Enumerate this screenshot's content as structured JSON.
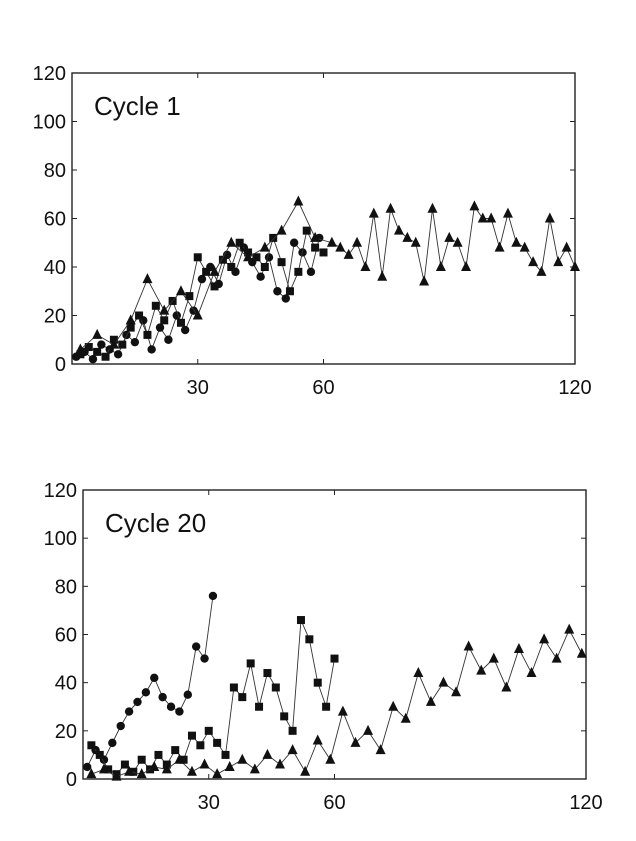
{
  "chart_data": [
    {
      "type": "line",
      "title": "Cycle 1",
      "xlabel": "",
      "ylabel": "",
      "xlim": [
        0,
        120
      ],
      "ylim": [
        0,
        120
      ],
      "x_ticks": [
        30,
        60,
        120
      ],
      "y_ticks": [
        0,
        20,
        40,
        60,
        80,
        100,
        120
      ],
      "grid": false,
      "series": [
        {
          "marker": "circle",
          "x": [
            1,
            3,
            5,
            7,
            9,
            11,
            13,
            15,
            17,
            19,
            21,
            23,
            25,
            27,
            29,
            31,
            33,
            35,
            37,
            39,
            41,
            43,
            45,
            47,
            49,
            51,
            53,
            55,
            57,
            59
          ],
          "y": [
            3,
            5,
            2,
            8,
            6,
            4,
            12,
            9,
            18,
            6,
            15,
            10,
            20,
            14,
            22,
            35,
            40,
            33,
            45,
            38,
            48,
            42,
            36,
            44,
            30,
            27,
            50,
            46,
            38,
            52
          ]
        },
        {
          "marker": "square",
          "x": [
            2,
            4,
            6,
            8,
            10,
            12,
            14,
            16,
            18,
            20,
            22,
            24,
            26,
            28,
            30,
            32,
            34,
            36,
            38,
            40,
            42,
            44,
            46,
            48,
            50,
            52,
            54,
            56,
            58,
            60
          ],
          "y": [
            4,
            7,
            5,
            3,
            10,
            8,
            15,
            20,
            12,
            24,
            18,
            26,
            17,
            28,
            44,
            38,
            32,
            43,
            40,
            50,
            46,
            44,
            40,
            52,
            42,
            30,
            38,
            55,
            48,
            46
          ]
        },
        {
          "marker": "triangle",
          "x": [
            2,
            6,
            10,
            14,
            18,
            22,
            26,
            30,
            34,
            38,
            42,
            46,
            50,
            54,
            58,
            62,
            64,
            66,
            68,
            70,
            72,
            74,
            76,
            78,
            80,
            82,
            84,
            86,
            88,
            90,
            92,
            94,
            96,
            98,
            100,
            102,
            104,
            106,
            108,
            110,
            112,
            114,
            116,
            118,
            120
          ],
          "y": [
            6,
            12,
            8,
            18,
            35,
            22,
            30,
            20,
            38,
            50,
            44,
            48,
            55,
            67,
            52,
            50,
            48,
            45,
            50,
            40,
            62,
            36,
            64,
            55,
            52,
            50,
            34,
            64,
            40,
            52,
            50,
            40,
            65,
            60,
            60,
            48,
            62,
            50,
            48,
            42,
            38,
            60,
            42,
            48,
            40
          ]
        }
      ]
    },
    {
      "type": "line",
      "title": "Cycle 20",
      "xlabel": "",
      "ylabel": "",
      "xlim": [
        0,
        120
      ],
      "ylim": [
        0,
        120
      ],
      "x_ticks": [
        30,
        60,
        120
      ],
      "y_ticks": [
        0,
        20,
        40,
        60,
        80,
        100,
        120
      ],
      "grid": false,
      "series": [
        {
          "marker": "circle",
          "x": [
            1,
            3,
            5,
            7,
            9,
            11,
            13,
            15,
            17,
            19,
            21,
            23,
            25,
            27,
            29,
            31
          ],
          "y": [
            5,
            12,
            8,
            15,
            22,
            28,
            32,
            36,
            42,
            34,
            30,
            28,
            35,
            55,
            50,
            76
          ]
        },
        {
          "marker": "square",
          "x": [
            2,
            4,
            6,
            8,
            10,
            12,
            14,
            16,
            18,
            20,
            22,
            24,
            26,
            28,
            30,
            32,
            34,
            36,
            38,
            40,
            42,
            44,
            46,
            48,
            50,
            52,
            54,
            56,
            58,
            60
          ],
          "y": [
            14,
            10,
            4,
            2,
            6,
            3,
            8,
            4,
            10,
            6,
            12,
            8,
            18,
            14,
            20,
            15,
            10,
            38,
            34,
            48,
            30,
            44,
            38,
            26,
            20,
            66,
            58,
            40,
            30,
            50
          ]
        },
        {
          "marker": "triangle",
          "x": [
            2,
            5,
            8,
            11,
            14,
            17,
            20,
            23,
            26,
            29,
            32,
            35,
            38,
            41,
            44,
            47,
            50,
            53,
            56,
            59,
            62,
            65,
            68,
            71,
            74,
            77,
            80,
            83,
            86,
            89,
            92,
            95,
            98,
            101,
            104,
            107,
            110,
            113,
            116,
            119
          ],
          "y": [
            2,
            4,
            1,
            3,
            2,
            5,
            4,
            8,
            3,
            6,
            2,
            5,
            8,
            4,
            10,
            6,
            12,
            3,
            16,
            8,
            28,
            15,
            20,
            12,
            30,
            25,
            44,
            32,
            40,
            36,
            55,
            45,
            50,
            38,
            54,
            44,
            58,
            50,
            62,
            52
          ]
        }
      ]
    }
  ]
}
